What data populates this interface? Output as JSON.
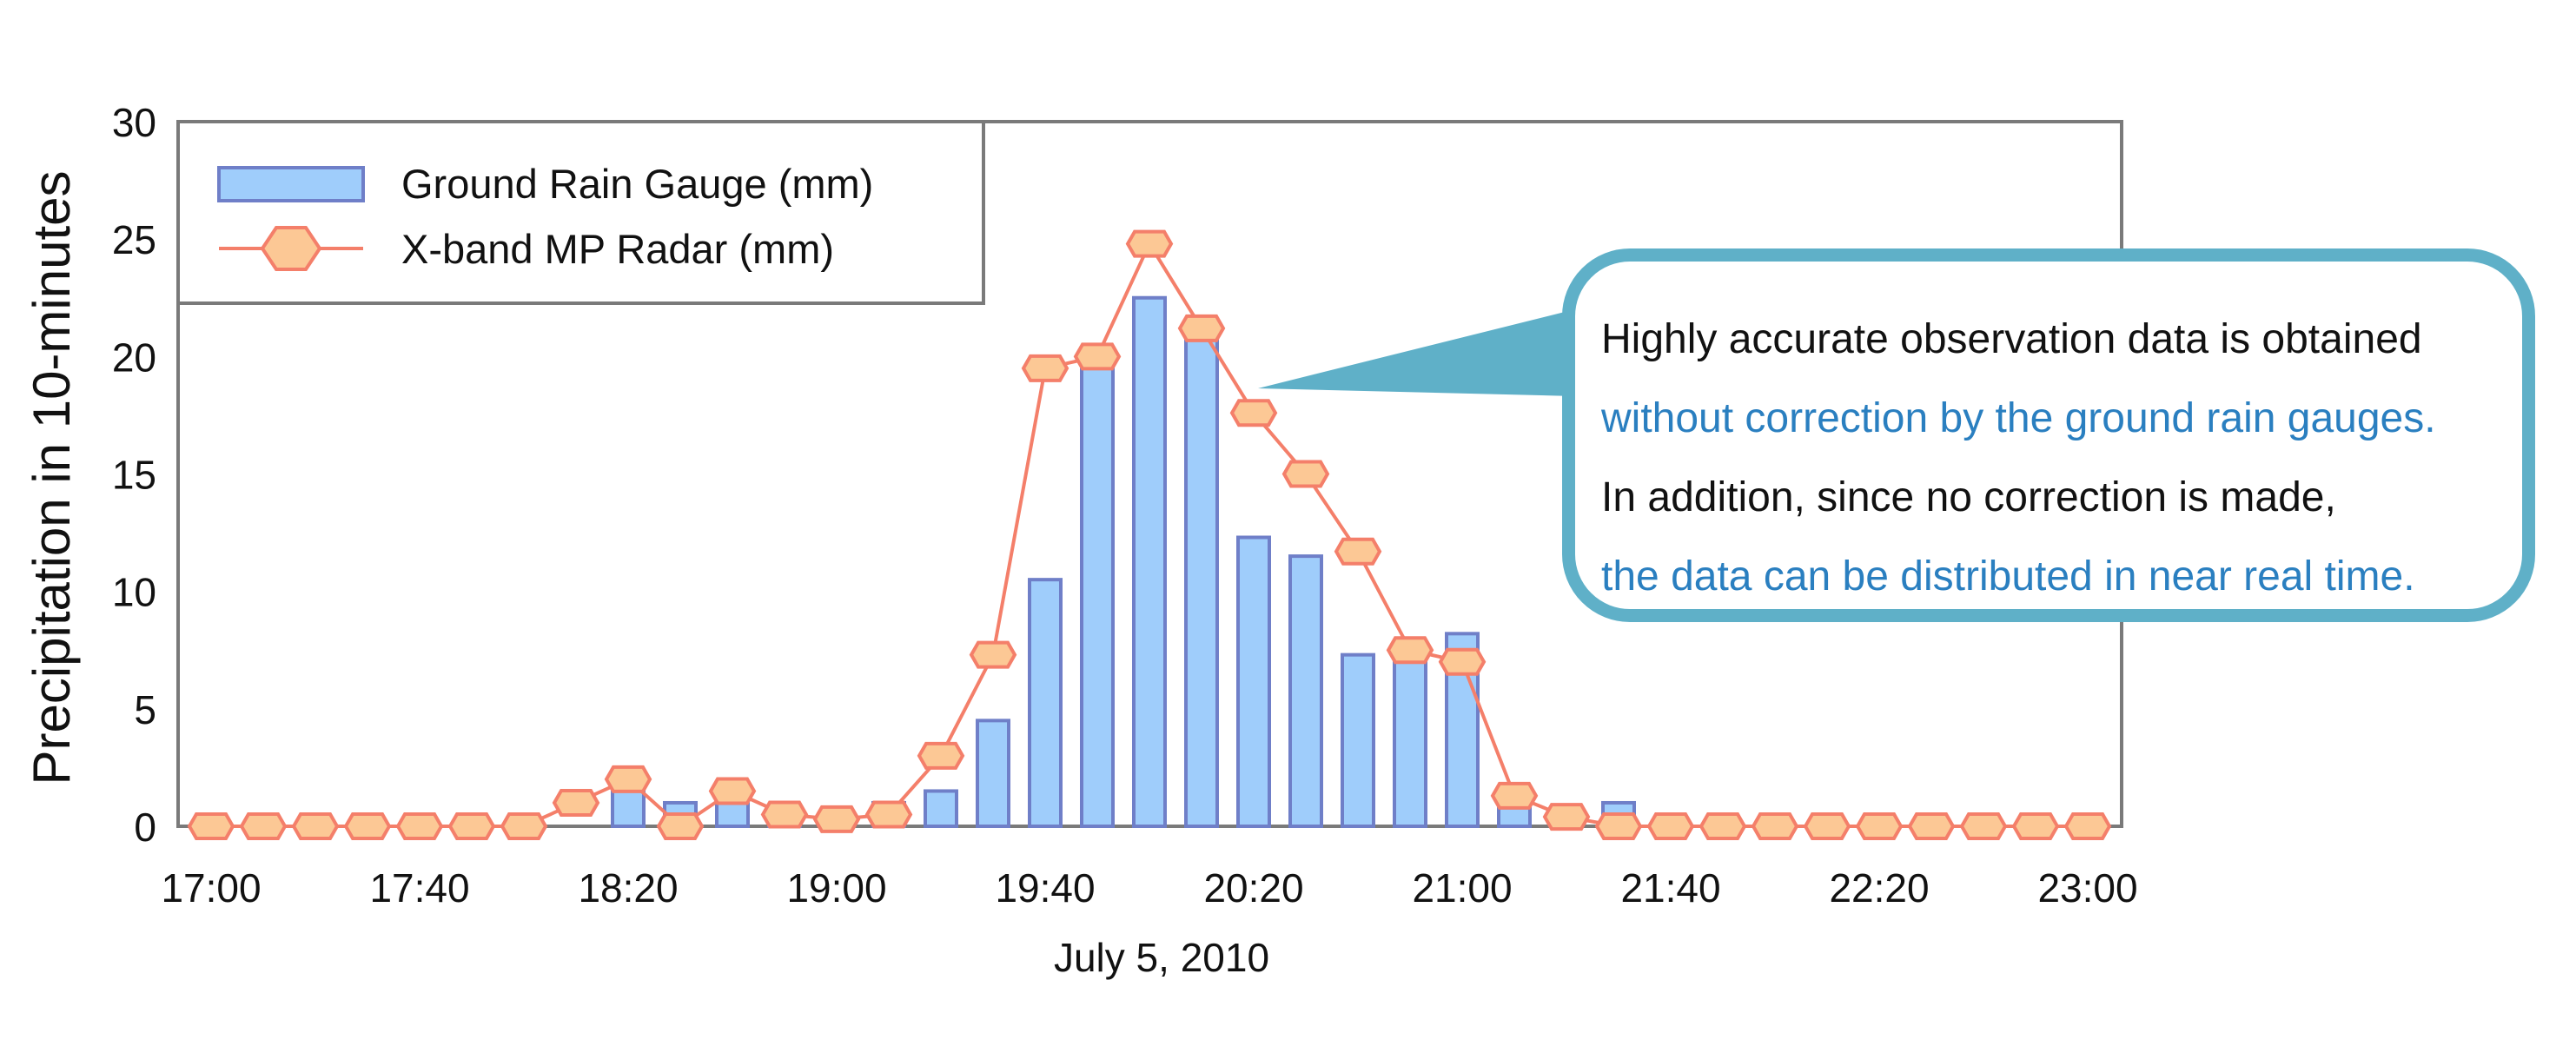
{
  "chart_data": {
    "type": "bar+line",
    "x_categories": [
      "17:00",
      "17:40",
      "18:20",
      "19:00",
      "19:40",
      "20:20",
      "21:00",
      "21:40",
      "22:20",
      "23:00"
    ],
    "xlabel": "July 5, 2010",
    "ylabel": "Precipitation in 10-minutes",
    "ylim": [
      0,
      30
    ],
    "yticks": [
      "0",
      "5",
      "10",
      "15",
      "20",
      "25",
      "30"
    ],
    "grid": false,
    "legend_position": "top-left",
    "series": [
      {
        "name": "Ground Rain Gauge (mm)",
        "kind": "bar",
        "x": [
          "18:20",
          "18:30",
          "18:40",
          "18:50",
          "19:10",
          "19:20",
          "19:30",
          "19:40",
          "19:50",
          "20:00",
          "20:10",
          "20:20",
          "20:30",
          "20:40",
          "20:50",
          "21:00",
          "21:10",
          "21:30"
        ],
        "values": [
          2.0,
          1.0,
          1.1,
          0.9,
          1.0,
          1.5,
          4.5,
          10.5,
          19.5,
          22.5,
          21.5,
          12.3,
          11.5,
          7.3,
          7.3,
          8.2,
          1.4,
          1.0
        ]
      },
      {
        "name": "X-band MP Radar (mm)",
        "kind": "line",
        "x": [
          "17:00",
          "17:10",
          "17:20",
          "17:30",
          "17:40",
          "17:50",
          "18:00",
          "18:10",
          "18:20",
          "18:30",
          "18:40",
          "18:50",
          "19:00",
          "19:10",
          "19:20",
          "19:30",
          "19:40",
          "19:50",
          "20:00",
          "20:10",
          "20:20",
          "20:30",
          "20:40",
          "20:50",
          "21:00",
          "21:10",
          "21:20",
          "21:30",
          "21:40",
          "21:50",
          "22:00",
          "22:10",
          "22:20",
          "22:30",
          "22:40",
          "22:50",
          "23:00"
        ],
        "values": [
          0,
          0,
          0,
          0,
          0,
          0,
          0,
          1.0,
          2.0,
          0,
          1.5,
          0.5,
          0.3,
          0.5,
          3.0,
          7.3,
          19.5,
          20.0,
          24.8,
          21.2,
          17.6,
          15.0,
          11.7,
          7.5,
          7.0,
          1.3,
          0.4,
          0,
          0,
          0,
          0,
          0,
          0,
          0,
          0,
          0,
          0
        ]
      }
    ]
  },
  "callout": {
    "line1": "Highly accurate observation data is obtained",
    "line2": "without correction by the ground rain gauges.",
    "line3": "In addition, since no correction is made,",
    "line4": "the data can be distributed in near real time."
  },
  "colors": {
    "bar_fill": "#9fcdfb",
    "bar_stroke": "#6f7fc8",
    "line_stroke": "#f47f6a",
    "marker_fill": "#fcc895",
    "callout_border": "#5fb0c8",
    "callout_highlight": "#2a7fc0"
  }
}
